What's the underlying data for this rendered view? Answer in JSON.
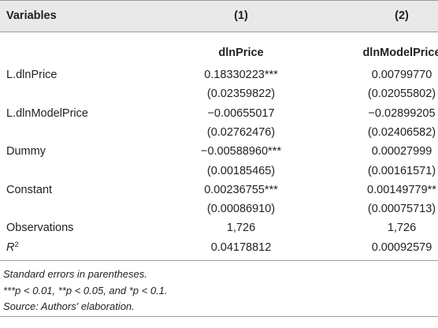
{
  "header": {
    "col_label": "Variables",
    "col1": "(1)",
    "col2": "(2)"
  },
  "subheader": {
    "col1": "dlnPrice",
    "col2": "dlnModelPrice"
  },
  "rows": [
    {
      "label": "L.dlnPrice",
      "c1": "0.18330223***",
      "c2": "0.00799770"
    },
    {
      "label": "",
      "c1": "(0.02359822)",
      "c2": "(0.02055802)"
    },
    {
      "label": "L.dlnModelPrice",
      "c1": "−0.00655017",
      "c2": "−0.02899205"
    },
    {
      "label": "",
      "c1": "(0.02762476)",
      "c2": "(0.02406582)"
    },
    {
      "label": "Dummy",
      "c1": "−0.00588960***",
      "c2": "0.00027999"
    },
    {
      "label": "",
      "c1": "(0.00185465)",
      "c2": "(0.00161571)"
    },
    {
      "label": "Constant",
      "c1": "0.00236755***",
      "c2": "0.00149779**"
    },
    {
      "label": "",
      "c1": "(0.00086910)",
      "c2": "(0.00075713)"
    },
    {
      "label": "Observations",
      "c1": "1,726",
      "c2": "1,726"
    },
    {
      "label": "R",
      "label_sup": "2",
      "c1": "0.04178812",
      "c2": "0.00092579"
    }
  ],
  "notes": {
    "line1": "Standard errors in parentheses.",
    "line2": "***p < 0.01, **p < 0.05, and *p < 0.1.",
    "line3": "Source: Authors' elaboration."
  }
}
